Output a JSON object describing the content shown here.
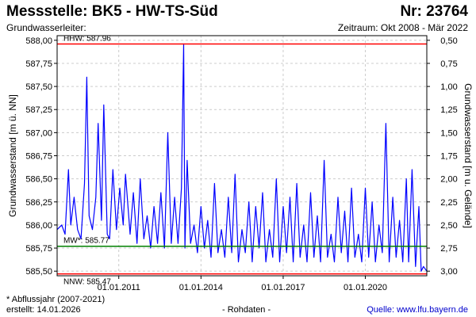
{
  "header": {
    "title": "Messstelle: BK5 - HW-TS-Süd",
    "nr": "Nr: 23764",
    "aquifer": "Grundwasserleiter:",
    "period": "Zeitraum: Okt 2008 - Mär 2022"
  },
  "footer": {
    "footnote": "* Abflussjahr (2007-2021)",
    "created": "erstellt:  14.01.2026",
    "rawdata": "- Rohdaten -",
    "source": "Quelle:  www.lfu.bayern.de"
  },
  "chart_data": {
    "type": "line",
    "ylabel": "Grundwasserstand [m ü. NN]",
    "y2label": "Grundwasserstand [m u. Gelände]",
    "ylim": [
      585.45,
      588.05
    ],
    "xlim": [
      "2008-10-01",
      "2022-03-31"
    ],
    "y_ticks": [
      "588,00",
      "587,75",
      "587,50",
      "587,25",
      "587,00",
      "586,75",
      "586,50",
      "586,25",
      "586,00",
      "585,75",
      "585,50"
    ],
    "y_tick_values": [
      588.0,
      587.75,
      587.5,
      587.25,
      587.0,
      586.75,
      586.5,
      586.25,
      586.0,
      585.75,
      585.5
    ],
    "y2_ticks": [
      "0,50",
      "0,75",
      "1,00",
      "1,25",
      "1,50",
      "1,75",
      "2,00",
      "2,25",
      "2,50",
      "2,75",
      "3,00"
    ],
    "x_ticks": [
      "01.01.2011",
      "01.01.2014",
      "01.01.2017",
      "01.01.2020"
    ],
    "x_tick_dates": [
      "2011-01-01",
      "2014-01-01",
      "2017-01-01",
      "2020-01-01"
    ],
    "grid": true,
    "reference_lines": [
      {
        "label": "HHW: 587.96",
        "value": 587.96,
        "color": "#ff0000",
        "label_position": "top"
      },
      {
        "label": "MW*: 585.77",
        "value": 585.77,
        "color": "#008000",
        "label_position": "top"
      },
      {
        "label": "NNW: 585.47",
        "value": 585.47,
        "color": "#ff0000",
        "label_position": "bottom"
      }
    ],
    "series": [
      {
        "color": "#0000ff",
        "x": [
          "2008-10-01",
          "2008-12-01",
          "2009-01-15",
          "2009-03-01",
          "2009-04-01",
          "2009-05-15",
          "2009-07-01",
          "2009-08-15",
          "2009-10-01",
          "2009-11-01",
          "2009-12-01",
          "2010-01-15",
          "2010-03-01",
          "2010-04-01",
          "2010-05-15",
          "2010-06-15",
          "2010-08-01",
          "2010-09-01",
          "2010-10-15",
          "2010-12-01",
          "2011-01-15",
          "2011-03-01",
          "2011-04-01",
          "2011-06-01",
          "2011-07-15",
          "2011-09-01",
          "2011-10-15",
          "2011-12-01",
          "2012-01-15",
          "2012-03-01",
          "2012-04-15",
          "2012-06-01",
          "2012-07-15",
          "2012-09-01",
          "2012-10-15",
          "2012-12-01",
          "2013-01-15",
          "2013-03-01",
          "2013-04-15",
          "2013-05-15",
          "2013-06-01",
          "2013-07-01",
          "2013-08-15",
          "2013-10-01",
          "2013-11-15",
          "2014-01-01",
          "2014-02-15",
          "2014-04-01",
          "2014-05-15",
          "2014-07-01",
          "2014-08-15",
          "2014-10-01",
          "2014-11-15",
          "2015-01-01",
          "2015-02-15",
          "2015-04-01",
          "2015-05-15",
          "2015-07-01",
          "2015-08-15",
          "2015-10-01",
          "2015-11-15",
          "2016-01-01",
          "2016-02-15",
          "2016-04-01",
          "2016-05-15",
          "2016-07-01",
          "2016-08-15",
          "2016-10-01",
          "2016-11-15",
          "2017-01-01",
          "2017-02-15",
          "2017-04-01",
          "2017-05-15",
          "2017-07-01",
          "2017-08-15",
          "2017-10-01",
          "2017-11-15",
          "2018-01-01",
          "2018-02-15",
          "2018-04-01",
          "2018-05-15",
          "2018-07-01",
          "2018-08-15",
          "2018-10-01",
          "2018-11-15",
          "2019-01-01",
          "2019-02-15",
          "2019-04-01",
          "2019-05-15",
          "2019-07-01",
          "2019-08-15",
          "2019-10-01",
          "2019-11-15",
          "2020-01-01",
          "2020-02-15",
          "2020-04-01",
          "2020-05-15",
          "2020-07-01",
          "2020-08-15",
          "2020-10-01",
          "2020-11-15",
          "2021-01-01",
          "2021-02-15",
          "2021-04-01",
          "2021-05-15",
          "2021-07-01",
          "2021-08-01",
          "2021-09-15",
          "2021-11-01",
          "2021-12-15",
          "2022-01-15",
          "2022-02-15",
          "2022-03-31"
        ],
        "y": [
          585.95,
          586.0,
          585.9,
          586.6,
          586.0,
          586.3,
          585.95,
          585.85,
          586.45,
          587.6,
          586.1,
          585.95,
          586.3,
          587.1,
          586.05,
          587.3,
          585.9,
          585.85,
          586.6,
          585.95,
          586.4,
          586.0,
          586.55,
          585.9,
          586.35,
          585.8,
          586.5,
          585.85,
          586.1,
          585.75,
          586.2,
          585.8,
          586.35,
          585.75,
          587.0,
          585.8,
          586.3,
          585.8,
          586.4,
          587.96,
          585.75,
          586.7,
          585.8,
          586.0,
          585.7,
          586.2,
          585.75,
          586.05,
          585.65,
          586.45,
          585.7,
          585.95,
          585.65,
          586.3,
          585.7,
          586.55,
          585.6,
          585.95,
          585.7,
          586.25,
          585.6,
          586.2,
          585.75,
          586.35,
          585.6,
          585.95,
          585.65,
          586.5,
          585.6,
          586.2,
          585.7,
          586.3,
          585.6,
          586.45,
          585.65,
          586.0,
          585.6,
          586.35,
          585.65,
          586.1,
          585.6,
          586.7,
          585.65,
          585.9,
          585.6,
          586.3,
          585.7,
          586.15,
          585.6,
          586.4,
          585.65,
          585.9,
          585.6,
          586.4,
          585.65,
          586.25,
          585.6,
          586.0,
          585.7,
          587.1,
          585.6,
          586.3,
          585.65,
          586.05,
          585.6,
          586.5,
          585.6,
          586.6,
          585.55,
          586.2,
          585.5,
          585.55,
          585.5
        ]
      }
    ]
  }
}
